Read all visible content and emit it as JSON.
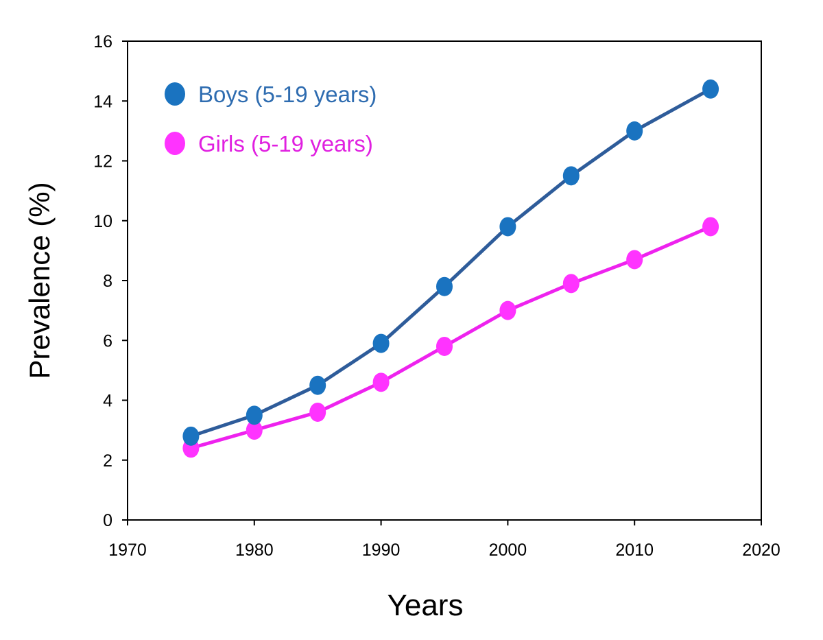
{
  "chart_data": {
    "type": "line",
    "title": "",
    "xlabel": "Years",
    "ylabel": "Prevalence (%)",
    "xlim": [
      1970,
      2020
    ],
    "ylim": [
      0,
      16
    ],
    "x_ticks": [
      1970,
      1980,
      1990,
      2000,
      2010,
      2020
    ],
    "y_ticks": [
      0,
      2,
      4,
      6,
      8,
      10,
      12,
      14,
      16
    ],
    "grid": false,
    "legend_position": "top-left",
    "x": [
      1975,
      1980,
      1985,
      1990,
      1995,
      2000,
      2005,
      2010,
      2016
    ],
    "series": [
      {
        "name": "Boys (5-19 years)",
        "values": [
          2.8,
          3.5,
          4.5,
          5.9,
          7.8,
          9.8,
          11.5,
          13.0,
          14.4
        ],
        "line_color": "#2e5c9a",
        "marker_color": "#1a73c0",
        "label_color": "#2e6cb0"
      },
      {
        "name": "Girls (5-19 years)",
        "values": [
          2.4,
          3.0,
          3.6,
          4.6,
          5.8,
          7.0,
          7.9,
          8.7,
          9.8
        ],
        "line_color": "#ee22ee",
        "marker_color": "#ff33ff",
        "label_color": "#e020e0"
      }
    ]
  }
}
